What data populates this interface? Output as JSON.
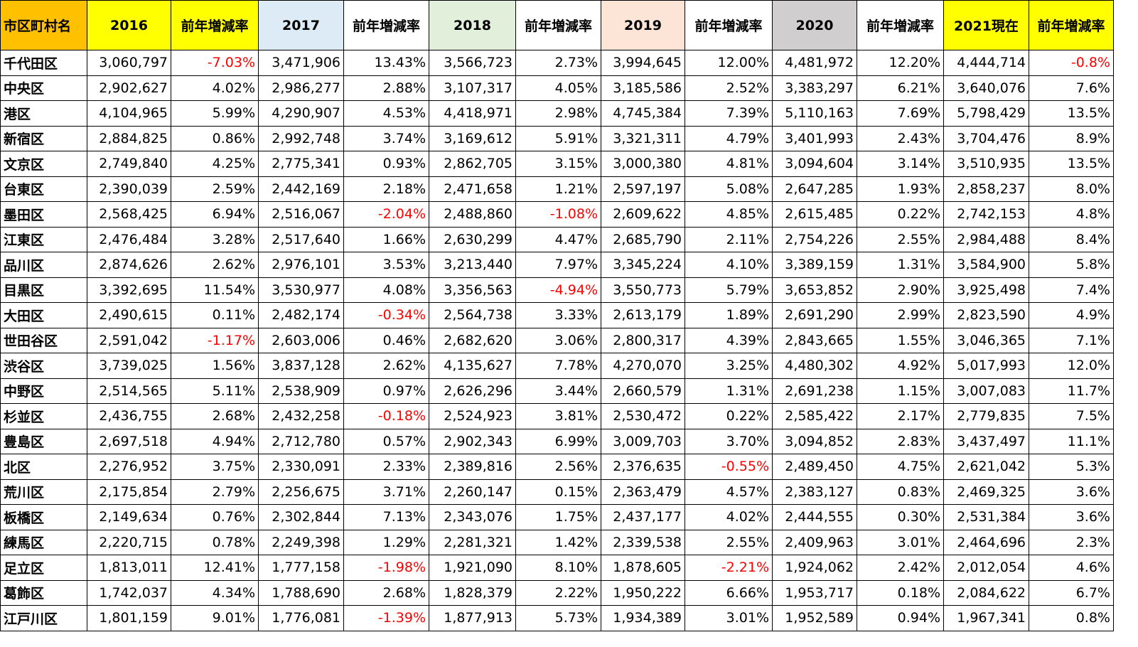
{
  "table": {
    "header": [
      "市区町村名",
      "2016",
      "前年増減率",
      "2017",
      "前年増減率",
      "2018",
      "前年増減率",
      "2019",
      "前年増減率",
      "2020",
      "前年増減率",
      "2021現在",
      "前年増減率"
    ],
    "rows": [
      [
        "千代田区",
        "3,060,797",
        "-7.03%",
        "3,471,906",
        "13.43%",
        "3,566,723",
        "2.73%",
        "3,994,645",
        "12.00%",
        "4,481,972",
        "12.20%",
        "4,444,714",
        "-0.8%"
      ],
      [
        "中央区",
        "2,902,627",
        "4.02%",
        "2,986,277",
        "2.88%",
        "3,107,317",
        "4.05%",
        "3,185,586",
        "2.52%",
        "3,383,297",
        "6.21%",
        "3,640,076",
        "7.6%"
      ],
      [
        "港区",
        "4,104,965",
        "5.99%",
        "4,290,907",
        "4.53%",
        "4,418,971",
        "2.98%",
        "4,745,384",
        "7.39%",
        "5,110,163",
        "7.69%",
        "5,798,429",
        "13.5%"
      ],
      [
        "新宿区",
        "2,884,825",
        "0.86%",
        "2,992,748",
        "3.74%",
        "3,169,612",
        "5.91%",
        "3,321,311",
        "4.79%",
        "3,401,993",
        "2.43%",
        "3,704,476",
        "8.9%"
      ],
      [
        "文京区",
        "2,749,840",
        "4.25%",
        "2,775,341",
        "0.93%",
        "2,862,705",
        "3.15%",
        "3,000,380",
        "4.81%",
        "3,094,604",
        "3.14%",
        "3,510,935",
        "13.5%"
      ],
      [
        "台東区",
        "2,390,039",
        "2.59%",
        "2,442,169",
        "2.18%",
        "2,471,658",
        "1.21%",
        "2,597,197",
        "5.08%",
        "2,647,285",
        "1.93%",
        "2,858,237",
        "8.0%"
      ],
      [
        "墨田区",
        "2,568,425",
        "6.94%",
        "2,516,067",
        "-2.04%",
        "2,488,860",
        "-1.08%",
        "2,609,622",
        "4.85%",
        "2,615,485",
        "0.22%",
        "2,742,153",
        "4.8%"
      ],
      [
        "江東区",
        "2,476,484",
        "3.28%",
        "2,517,640",
        "1.66%",
        "2,630,299",
        "4.47%",
        "2,685,790",
        "2.11%",
        "2,754,226",
        "2.55%",
        "2,984,488",
        "8.4%"
      ],
      [
        "品川区",
        "2,874,626",
        "2.62%",
        "2,976,101",
        "3.53%",
        "3,213,440",
        "7.97%",
        "3,345,224",
        "4.10%",
        "3,389,159",
        "1.31%",
        "3,584,900",
        "5.8%"
      ],
      [
        "目黒区",
        "3,392,695",
        "11.54%",
        "3,530,977",
        "4.08%",
        "3,356,563",
        "-4.94%",
        "3,550,773",
        "5.79%",
        "3,653,852",
        "2.90%",
        "3,925,498",
        "7.4%"
      ],
      [
        "大田区",
        "2,490,615",
        "0.11%",
        "2,482,174",
        "-0.34%",
        "2,564,738",
        "3.33%",
        "2,613,179",
        "1.89%",
        "2,691,290",
        "2.99%",
        "2,823,590",
        "4.9%"
      ],
      [
        "世田谷区",
        "2,591,042",
        "-1.17%",
        "2,603,006",
        "0.46%",
        "2,682,620",
        "3.06%",
        "2,800,317",
        "4.39%",
        "2,843,665",
        "1.55%",
        "3,046,365",
        "7.1%"
      ],
      [
        "渋谷区",
        "3,739,025",
        "1.56%",
        "3,837,128",
        "2.62%",
        "4,135,627",
        "7.78%",
        "4,270,070",
        "3.25%",
        "4,480,302",
        "4.92%",
        "5,017,993",
        "12.0%"
      ],
      [
        "中野区",
        "2,514,565",
        "5.11%",
        "2,538,909",
        "0.97%",
        "2,626,296",
        "3.44%",
        "2,660,579",
        "1.31%",
        "2,691,238",
        "1.15%",
        "3,007,083",
        "11.7%"
      ],
      [
        "杉並区",
        "2,436,755",
        "2.68%",
        "2,432,258",
        "-0.18%",
        "2,524,923",
        "3.81%",
        "2,530,472",
        "0.22%",
        "2,585,422",
        "2.17%",
        "2,779,835",
        "7.5%"
      ],
      [
        "豊島区",
        "2,697,518",
        "4.94%",
        "2,712,780",
        "0.57%",
        "2,902,343",
        "6.99%",
        "3,009,703",
        "3.70%",
        "3,094,852",
        "2.83%",
        "3,437,497",
        "11.1%"
      ],
      [
        "北区",
        "2,276,952",
        "3.75%",
        "2,330,091",
        "2.33%",
        "2,389,816",
        "2.56%",
        "2,376,635",
        "-0.55%",
        "2,489,450",
        "4.75%",
        "2,621,042",
        "5.3%"
      ],
      [
        "荒川区",
        "2,175,854",
        "2.79%",
        "2,256,675",
        "3.71%",
        "2,260,147",
        "0.15%",
        "2,363,479",
        "4.57%",
        "2,383,127",
        "0.83%",
        "2,469,325",
        "3.6%"
      ],
      [
        "板橋区",
        "2,149,634",
        "0.76%",
        "2,302,844",
        "7.13%",
        "2,343,076",
        "1.75%",
        "2,437,177",
        "4.02%",
        "2,444,555",
        "0.30%",
        "2,531,384",
        "3.6%"
      ],
      [
        "練馬区",
        "2,220,715",
        "0.78%",
        "2,249,398",
        "1.29%",
        "2,281,321",
        "1.42%",
        "2,339,538",
        "2.55%",
        "2,409,963",
        "3.01%",
        "2,464,696",
        "2.3%"
      ],
      [
        "足立区",
        "1,813,011",
        "12.41%",
        "1,777,158",
        "-1.98%",
        "1,921,090",
        "8.10%",
        "1,878,605",
        "-2.21%",
        "1,924,062",
        "2.42%",
        "2,012,054",
        "4.6%"
      ],
      [
        "葛飾区",
        "1,742,037",
        "4.34%",
        "1,788,690",
        "2.68%",
        "1,828,379",
        "2.22%",
        "1,950,222",
        "6.66%",
        "1,953,717",
        "0.18%",
        "2,084,622",
        "6.7%"
      ],
      [
        "江戸川区",
        "1,801,159",
        "9.01%",
        "1,776,081",
        "-1.39%",
        "1,877,913",
        "5.73%",
        "1,934,389",
        "3.01%",
        "1,952,589",
        "0.94%",
        "1,967,341",
        "0.8%"
      ]
    ]
  }
}
